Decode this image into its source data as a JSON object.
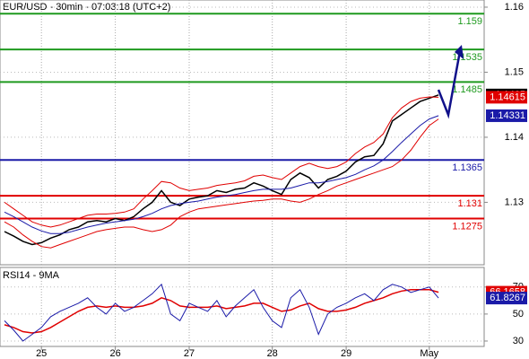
{
  "chart_data": [
    {
      "type": "line",
      "title": "EUR/USD - 30min - 07:03:18 (UTC+2)",
      "ylim": [
        1.1204,
        1.1611
      ],
      "yticks": [
        1.13,
        1.14,
        1.15,
        1.16
      ],
      "grid": true,
      "levels": [
        {
          "value": 1.159,
          "color": "#1f9a1f"
        },
        {
          "value": 1.1535,
          "color": "#1f9a1f"
        },
        {
          "value": 1.1485,
          "color": "#1f9a1f"
        },
        {
          "value": 1.1365,
          "color": "#1a1aa8"
        },
        {
          "value": 1.131,
          "color": "#e00000"
        },
        {
          "value": 1.1275,
          "color": "#e00000"
        }
      ],
      "series": [
        {
          "color": "#000000",
          "label_color": "#000000",
          "values": [
            1.1255,
            1.1248,
            1.124,
            1.1235,
            1.1238,
            1.1245,
            1.125,
            1.1258,
            1.1262,
            1.127,
            1.1272,
            1.127,
            1.1275,
            1.1272,
            1.1278,
            1.129,
            1.13,
            1.1318,
            1.13,
            1.1295,
            1.1305,
            1.1308,
            1.131,
            1.1318,
            1.1315,
            1.132,
            1.1322,
            1.133,
            1.1325,
            1.1318,
            1.1312,
            1.1335,
            1.1345,
            1.1338,
            1.1322,
            1.1335,
            1.134,
            1.1348,
            1.1362,
            1.137,
            1.1372,
            1.139,
            1.1425,
            1.1435,
            1.1445,
            1.1455,
            1.146,
            1.1465
          ]
        },
        {
          "color": "#e00000",
          "label_color": "#e00000",
          "values": [
            1.13,
            1.129,
            1.128,
            1.127,
            1.1265,
            1.1262,
            1.1265,
            1.127,
            1.1275,
            1.128,
            1.1282,
            1.1282,
            1.1283,
            1.1285,
            1.129,
            1.1305,
            1.1318,
            1.1332,
            1.133,
            1.1322,
            1.1318,
            1.132,
            1.1322,
            1.1326,
            1.1328,
            1.133,
            1.1333,
            1.134,
            1.1342,
            1.1338,
            1.1335,
            1.1345,
            1.1355,
            1.136,
            1.1355,
            1.1352,
            1.1355,
            1.1362,
            1.1375,
            1.1385,
            1.1392,
            1.1405,
            1.143,
            1.1445,
            1.1455,
            1.146,
            1.1462,
            1.14615
          ]
        },
        {
          "color": "#e00000",
          "values": [
            1.127,
            1.1262,
            1.125,
            1.124,
            1.1232,
            1.123,
            1.1235,
            1.124,
            1.1245,
            1.125,
            1.1255,
            1.1258,
            1.126,
            1.1262,
            1.1262,
            1.1258,
            1.1255,
            1.1258,
            1.1265,
            1.1278,
            1.1285,
            1.129,
            1.1292,
            1.1294,
            1.1296,
            1.1298,
            1.13,
            1.1302,
            1.1303,
            1.1305,
            1.1305,
            1.1302,
            1.13,
            1.1305,
            1.1312,
            1.1318,
            1.1325,
            1.133,
            1.1335,
            1.134,
            1.1345,
            1.135,
            1.1355,
            1.1365,
            1.138,
            1.14,
            1.1418,
            1.1428
          ]
        },
        {
          "color": "#1a1aa8",
          "label_color": "#1a1aa8",
          "values": [
            1.1285,
            1.1278,
            1.127,
            1.1262,
            1.1256,
            1.1252,
            1.1252,
            1.1254,
            1.1258,
            1.1262,
            1.1265,
            1.1268,
            1.127,
            1.1272,
            1.1274,
            1.1278,
            1.1283,
            1.129,
            1.1295,
            1.1298,
            1.13,
            1.1302,
            1.1305,
            1.1308,
            1.131,
            1.1312,
            1.1315,
            1.1318,
            1.132,
            1.132,
            1.132,
            1.1322,
            1.1326,
            1.133,
            1.133,
            1.1332,
            1.1335,
            1.1338,
            1.1343,
            1.135,
            1.1356,
            1.1365,
            1.1378,
            1.1392,
            1.1405,
            1.1418,
            1.1428,
            1.14331
          ]
        }
      ]
    },
    {
      "type": "line",
      "title": "RSI14 - 9MA",
      "categories": [
        null,
        null,
        null,
        null,
        "25",
        null,
        null,
        null,
        null,
        null,
        null,
        null,
        "26",
        null,
        null,
        null,
        null,
        null,
        null,
        null,
        "27",
        null,
        null,
        null,
        null,
        null,
        null,
        null,
        null,
        "28",
        null,
        null,
        null,
        null,
        null,
        null,
        null,
        "29",
        null,
        null,
        null,
        null,
        null,
        null,
        null,
        null,
        "May",
        null
      ],
      "ylim": [
        26,
        84.5
      ],
      "yticks": [
        30,
        50,
        70
      ],
      "grid": true,
      "series": [
        {
          "color": "#e00000",
          "label_color": "#e00000",
          "values": [
            42,
            40,
            37,
            36,
            37,
            40,
            44,
            48,
            52,
            55,
            56,
            55,
            56,
            55,
            55,
            56,
            58,
            62,
            60,
            56,
            55,
            55,
            55,
            56,
            54,
            55,
            56,
            58,
            58,
            55,
            52,
            53,
            56,
            58,
            54,
            52,
            52,
            53,
            55,
            58,
            60,
            62,
            65,
            67,
            68,
            68,
            68,
            66.1658
          ]
        },
        {
          "color": "#1a1aa8",
          "label_color": "#1a1aa8",
          "values": [
            45,
            38,
            30,
            35,
            40,
            48,
            52,
            55,
            58,
            62,
            55,
            50,
            58,
            52,
            55,
            60,
            65,
            72,
            50,
            45,
            58,
            55,
            52,
            60,
            48,
            56,
            62,
            68,
            55,
            45,
            40,
            62,
            68,
            55,
            35,
            50,
            55,
            58,
            62,
            65,
            60,
            68,
            72,
            70,
            66,
            68,
            70,
            61.8267
          ]
        }
      ]
    }
  ]
}
